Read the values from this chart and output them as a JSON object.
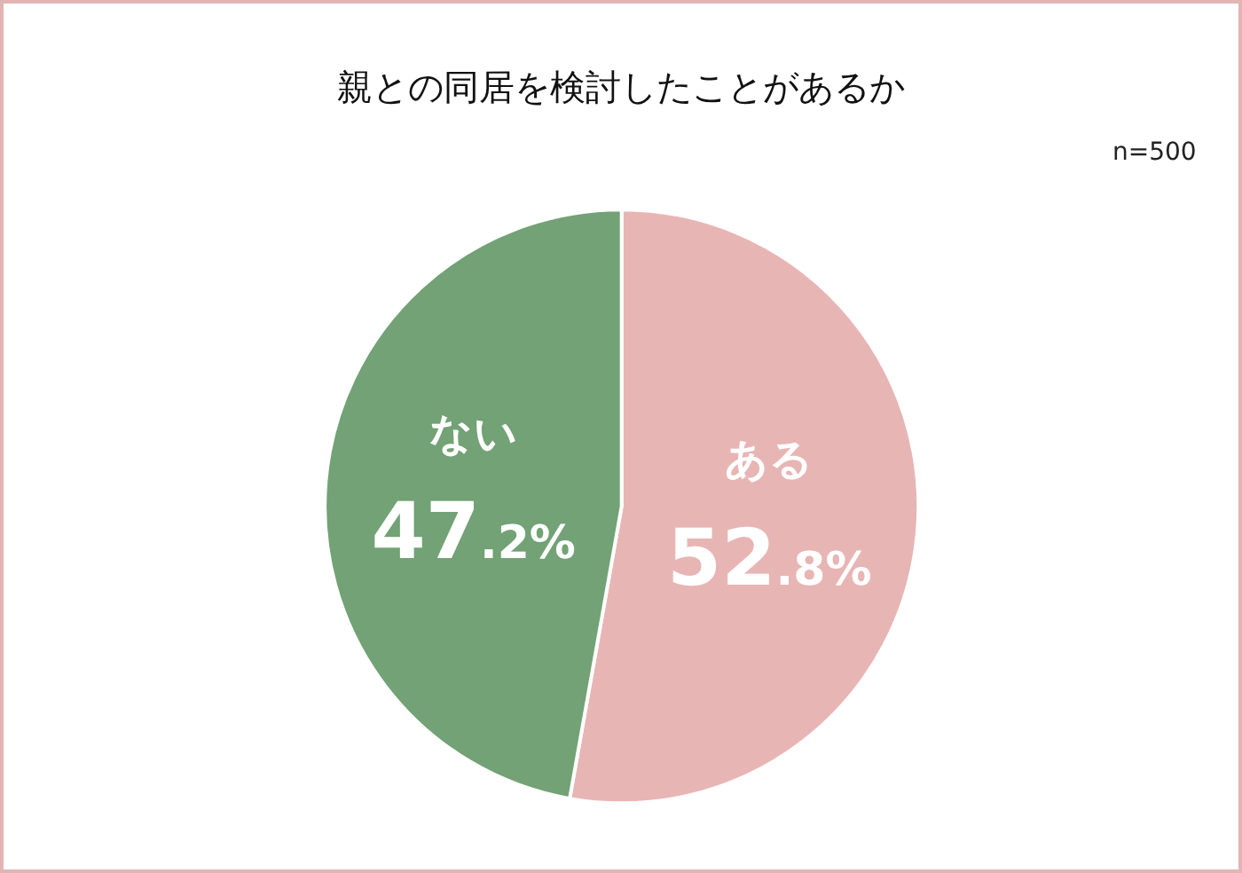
{
  "chart_data": {
    "type": "pie",
    "title": "親との同居を検討したことがあるか",
    "categories": [
      "ある",
      "ない"
    ],
    "values": [
      52.8,
      47.2
    ],
    "colors": [
      "#e8b5b5",
      "#72a275"
    ],
    "value_labels": [
      "52.8%",
      "47.2%"
    ],
    "annotations": [
      "n=500"
    ],
    "legend": false
  }
}
